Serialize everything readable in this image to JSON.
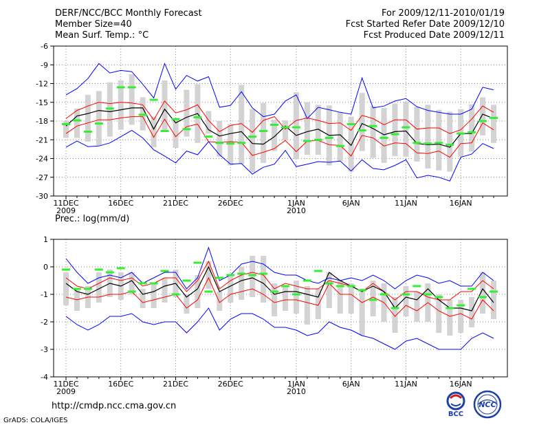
{
  "header": {
    "left": [
      "DERF/NCC/BCC Monthly Forecast",
      "Member Size=40",
      "Mean Surf. Temp.: °C"
    ],
    "right": [
      "For 2009/12/11-2010/01/19",
      "Fcst Started Refer Date 2009/12/10",
      "Fcst Produced Date 2009/12/11"
    ]
  },
  "footer": {
    "url": "http://cmdp.ncc.cma.gov.cn",
    "credit": "GrADS: COLA/IGES"
  },
  "logos": {
    "bcc_label": "BCC",
    "ncc_label": "NCC"
  },
  "colors": {
    "envelope": "#0000ff",
    "spread": "#ff0000",
    "mean": "#000000",
    "box": "#d3d3d3",
    "median": "#33ee33",
    "grid": "#888888"
  },
  "chart_data": [
    {
      "type": "line",
      "title": "Mean Surf. Temp.: °C",
      "days": 40,
      "ylim": [
        -30,
        -6
      ],
      "yticks": [
        -6,
        -9,
        -12,
        -15,
        -18,
        -21,
        -24,
        -27,
        -30
      ],
      "xticks": [
        {
          "day": 0,
          "label": "11DEC",
          "sub": "2009"
        },
        {
          "day": 5,
          "label": "16DEC",
          "sub": ""
        },
        {
          "day": 10,
          "label": "21DEC",
          "sub": ""
        },
        {
          "day": 15,
          "label": "26DEC",
          "sub": ""
        },
        {
          "day": 21,
          "label": "1JAN",
          "sub": "2010"
        },
        {
          "day": 26,
          "label": "6JAN",
          "sub": ""
        },
        {
          "day": 31,
          "label": "11JAN",
          "sub": ""
        },
        {
          "day": 36,
          "label": "16JAN",
          "sub": ""
        }
      ],
      "series": [
        {
          "name": "max",
          "values": [
            -13.8,
            -12.8,
            -11.2,
            -8.8,
            -10.3,
            -9.9,
            -10.1,
            -12.1,
            -14.3,
            -8.8,
            -12.9,
            -10.7,
            -11.6,
            -10.9,
            -15.8,
            -15.5,
            -13.3,
            -15.9,
            -17.3,
            -16.9,
            -14.8,
            -13.8,
            -17.6,
            -15.8,
            -16.2,
            -16.6,
            -16.9,
            -11.1,
            -15.9,
            -15.6,
            -14.8,
            -14.4,
            -15.7,
            -16.3,
            -16.6,
            -16.9,
            -16.9,
            -16.1,
            -12.6,
            -13.0
          ]
        },
        {
          "name": "upper",
          "values": [
            -17.6,
            -16.3,
            -15.6,
            -15.0,
            -15.2,
            -15.0,
            -15.1,
            -15.4,
            -17.8,
            -14.8,
            -16.7,
            -16.2,
            -15.4,
            -17.9,
            -19.7,
            -18.7,
            -18.4,
            -19.8,
            -17.9,
            -17.3,
            -19.3,
            -17.9,
            -17.5,
            -17.9,
            -18.4,
            -18.3,
            -19.5,
            -17.1,
            -17.6,
            -18.6,
            -17.8,
            -17.8,
            -19.3,
            -19.1,
            -19.1,
            -20.0,
            -19.4,
            -17.7,
            -15.6,
            -16.6
          ]
        },
        {
          "name": "mean",
          "values": [
            -18.8,
            -17.2,
            -16.8,
            -16.3,
            -16.5,
            -16.2,
            -15.9,
            -15.9,
            -19.3,
            -16.1,
            -18.3,
            -17.4,
            -16.8,
            -19.4,
            -20.4,
            -20.0,
            -19.7,
            -21.6,
            -21.7,
            -20.5,
            -18.8,
            -20.3,
            -19.7,
            -19.3,
            -20.3,
            -20.2,
            -21.9,
            -18.4,
            -19.2,
            -20.2,
            -19.7,
            -19.6,
            -21.6,
            -21.8,
            -21.7,
            -22.2,
            -20.0,
            -20.0,
            -16.9,
            -17.6
          ]
        },
        {
          "name": "lower",
          "values": [
            -20.0,
            -18.8,
            -18.3,
            -17.8,
            -17.8,
            -17.5,
            -17.3,
            -17.3,
            -20.6,
            -17.7,
            -20.5,
            -18.9,
            -18.5,
            -21.3,
            -21.4,
            -21.3,
            -21.4,
            -23.5,
            -23.0,
            -22.4,
            -21.1,
            -22.9,
            -21.2,
            -21.1,
            -21.8,
            -21.9,
            -23.6,
            -20.3,
            -20.7,
            -22.0,
            -21.5,
            -21.6,
            -23.1,
            -23.2,
            -22.8,
            -23.8,
            -21.6,
            -21.5,
            -18.3,
            -19.4
          ]
        },
        {
          "name": "min",
          "values": [
            -22.2,
            -21.2,
            -22.1,
            -22.0,
            -21.5,
            -20.5,
            -19.5,
            -20.7,
            -22.6,
            -23.6,
            -24.7,
            -22.8,
            -23.4,
            -21.3,
            -23.4,
            -24.9,
            -24.8,
            -26.5,
            -25.4,
            -24.9,
            -22.7,
            -25.3,
            -24.9,
            -24.5,
            -24.6,
            -24.4,
            -26.0,
            -24.2,
            -25.6,
            -25.8,
            -25.1,
            -24.2,
            -27.1,
            -26.7,
            -27.0,
            -27.6,
            -23.8,
            -23.3,
            -21.6,
            -22.4
          ]
        },
        {
          "name": "box_top",
          "values": [
            -18.0,
            -16.0,
            -13.8,
            -13.2,
            -11.8,
            -11.5,
            -10.5,
            -14.2,
            -17.3,
            -11.5,
            -17.6,
            -13.0,
            -12.1,
            -16.4,
            -18.0,
            -18.5,
            -12.2,
            -16.1,
            -15.1,
            -17.8,
            -17.9,
            -13.4,
            -15.0,
            -15.4,
            -15.5,
            -16.6,
            -17.3,
            -13.5,
            -15.6,
            -15.9,
            -15.2,
            -14.9,
            -15.7,
            -15.4,
            -16.2,
            -16.5,
            -16.1,
            -15.3,
            -14.2,
            -15.4
          ]
        },
        {
          "name": "box_bottom",
          "values": [
            -20.7,
            -20.7,
            -21.3,
            -21.9,
            -20.5,
            -19.4,
            -18.6,
            -19.5,
            -22.2,
            -19.5,
            -22.3,
            -20.5,
            -21.5,
            -20.0,
            -23.7,
            -25.1,
            -24.9,
            -26.2,
            -24.7,
            -22.8,
            -21.1,
            -24.1,
            -23.4,
            -23.4,
            -25.1,
            -24.4,
            -26.1,
            -22.8,
            -23.9,
            -24.7,
            -23.6,
            -23.7,
            -24.5,
            -25.6,
            -25.9,
            -26.1,
            -23.7,
            -22.9,
            -20.3,
            -21.5
          ]
        },
        {
          "name": "median",
          "values": [
            -18.5,
            -17.9,
            -19.7,
            -18.4,
            -16.0,
            -12.6,
            -12.6,
            -17.0,
            -14.6,
            -19.6,
            -17.7,
            -19.3,
            -17.4,
            -20.5,
            -21.5,
            -21.6,
            -21.5,
            -20.5,
            -19.6,
            -18.6,
            -19.0,
            -19.0,
            -21.2,
            -21.0,
            -20.7,
            -22.0,
            -18.5,
            -19.5,
            -18.8,
            -20.7,
            -20.1,
            -19.0,
            -21.5,
            -21.6,
            -21.5,
            -21.8,
            -20.0,
            -19.8,
            -18.0,
            -17.5
          ]
        }
      ]
    },
    {
      "type": "line",
      "title": "Prec.: log(mm/d)",
      "days": 40,
      "ylim": [
        -4,
        1
      ],
      "yticks": [
        1,
        0,
        -1,
        -2,
        -3,
        -4
      ],
      "xticks": [
        {
          "day": 0,
          "label": "11DEC",
          "sub": "2009"
        },
        {
          "day": 5,
          "label": "16DEC",
          "sub": ""
        },
        {
          "day": 10,
          "label": "21DEC",
          "sub": ""
        },
        {
          "day": 15,
          "label": "26DEC",
          "sub": ""
        },
        {
          "day": 21,
          "label": "1JAN",
          "sub": "2010"
        },
        {
          "day": 26,
          "label": "6JAN",
          "sub": ""
        },
        {
          "day": 31,
          "label": "11JAN",
          "sub": ""
        },
        {
          "day": 36,
          "label": "16JAN",
          "sub": ""
        }
      ],
      "series": [
        {
          "name": "max",
          "values": [
            0.3,
            -0.2,
            -0.6,
            -0.4,
            -0.3,
            -0.4,
            -0.2,
            -0.6,
            -0.4,
            -0.2,
            -0.2,
            -0.8,
            -0.4,
            0.7,
            -0.5,
            -0.3,
            0.1,
            0.2,
            0.1,
            -0.2,
            -0.3,
            -0.3,
            -0.5,
            -0.6,
            -0.4,
            -0.5,
            -0.4,
            -0.5,
            -0.3,
            -0.5,
            -0.8,
            -0.5,
            -0.3,
            -0.4,
            -0.6,
            -0.5,
            -0.7,
            -0.7,
            -0.2,
            -0.5
          ]
        },
        {
          "name": "upper",
          "values": [
            -0.4,
            -0.7,
            -0.8,
            -0.6,
            -0.4,
            -0.5,
            -0.4,
            -0.7,
            -0.6,
            -0.4,
            -0.4,
            -0.9,
            -0.5,
            0.2,
            -0.8,
            -0.5,
            -0.3,
            -0.2,
            -0.3,
            -0.8,
            -0.6,
            -0.7,
            -0.8,
            -0.8,
            -0.5,
            -0.6,
            -0.7,
            -0.9,
            -0.6,
            -0.9,
            -1.2,
            -0.9,
            -0.9,
            -1.1,
            -1.2,
            -1.2,
            -0.9,
            -0.9,
            -0.5,
            -0.8
          ]
        },
        {
          "name": "mean",
          "values": [
            -0.6,
            -0.9,
            -1.0,
            -0.8,
            -0.6,
            -0.7,
            -0.5,
            -1.0,
            -0.9,
            -0.7,
            -0.6,
            -1.1,
            -0.8,
            0.0,
            -0.9,
            -0.7,
            -0.5,
            -0.4,
            -0.6,
            -1.0,
            -0.9,
            -0.9,
            -1.0,
            -1.1,
            -0.2,
            -0.5,
            -0.7,
            -0.9,
            -0.7,
            -0.9,
            -1.5,
            -1.1,
            -1.2,
            -0.8,
            -1.2,
            -1.5,
            -1.5,
            -1.6,
            -0.8,
            -1.3
          ]
        },
        {
          "name": "lower",
          "values": [
            -1.1,
            -1.2,
            -1.1,
            -1.1,
            -1.0,
            -1.0,
            -0.9,
            -1.3,
            -1.2,
            -1.1,
            -1.0,
            -1.5,
            -1.2,
            -0.4,
            -1.3,
            -1.0,
            -0.9,
            -0.8,
            -1.0,
            -1.3,
            -1.2,
            -1.2,
            -1.3,
            -1.4,
            -0.6,
            -1.0,
            -1.0,
            -1.3,
            -1.1,
            -1.3,
            -1.8,
            -1.4,
            -1.6,
            -1.3,
            -1.6,
            -1.8,
            -1.7,
            -1.9,
            -1.2,
            -1.6
          ]
        },
        {
          "name": "min",
          "values": [
            -1.8,
            -2.1,
            -2.3,
            -2.1,
            -1.8,
            -1.8,
            -1.7,
            -2.0,
            -2.1,
            -2.0,
            -2.0,
            -2.4,
            -2.0,
            -1.5,
            -2.3,
            -1.9,
            -1.7,
            -1.7,
            -1.9,
            -2.2,
            -2.2,
            -2.3,
            -2.5,
            -2.4,
            -2.0,
            -2.2,
            -2.3,
            -2.5,
            -2.6,
            -2.8,
            -3.0,
            -2.7,
            -2.6,
            -2.8,
            -3.0,
            -3.0,
            -3.0,
            -2.6,
            -2.4,
            -2.6
          ]
        },
        {
          "name": "box_top",
          "values": [
            -0.2,
            -0.8,
            -0.7,
            -0.2,
            -0.1,
            -0.2,
            -0.2,
            -0.8,
            -0.6,
            -0.4,
            -0.1,
            -1.0,
            -0.3,
            0.2,
            -0.9,
            -0.3,
            0.0,
            0.4,
            0.4,
            -0.6,
            -0.7,
            -0.5,
            -0.7,
            -0.8,
            -0.2,
            -0.5,
            -0.6,
            -0.8,
            -0.5,
            -0.6,
            -1.1,
            -0.7,
            -0.9,
            -0.6,
            -1.0,
            -1.2,
            -1.2,
            -1.1,
            -0.2,
            -0.5
          ]
        },
        {
          "name": "box_bottom",
          "values": [
            -1.4,
            -1.6,
            -1.5,
            -1.3,
            -1.1,
            -1.2,
            -1.0,
            -1.5,
            -1.5,
            -1.3,
            -1.1,
            -1.7,
            -1.5,
            -0.8,
            -1.6,
            -1.3,
            -1.2,
            -1.1,
            -1.3,
            -1.8,
            -1.6,
            -1.7,
            -2.1,
            -1.9,
            -1.5,
            -1.7,
            -1.7,
            -2.5,
            -1.8,
            -2.0,
            -2.4,
            -1.8,
            -2.0,
            -2.0,
            -2.4,
            -2.5,
            -2.4,
            -2.2,
            -1.7,
            -1.9
          ]
        },
        {
          "name": "median",
          "values": [
            -0.1,
            -0.8,
            -0.8,
            -0.1,
            -0.2,
            -0.05,
            -0.9,
            -0.6,
            -0.6,
            -0.15,
            -1.0,
            -0.5,
            0.15,
            -0.9,
            -0.4,
            -0.3,
            -0.25,
            -0.3,
            -0.25,
            -0.9,
            -0.7,
            -1.0,
            -0.5,
            -0.15,
            -0.6,
            -0.7,
            -0.7,
            -0.85,
            -1.2,
            -1.0,
            -1.5,
            -1.0,
            -0.7,
            -1.0,
            -1.1,
            -1.5,
            -1.4,
            -0.8,
            -1.1,
            -0.9
          ]
        }
      ]
    }
  ]
}
